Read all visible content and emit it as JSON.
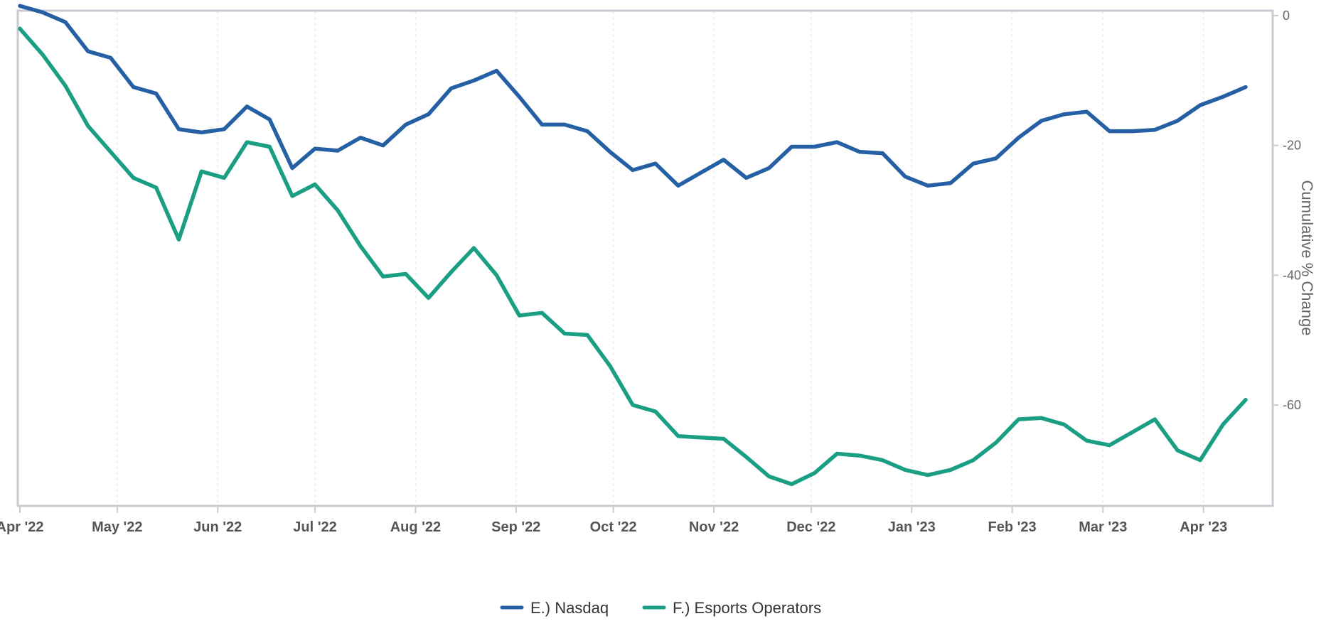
{
  "chart_data": {
    "type": "line",
    "title": "",
    "xlabel": "",
    "ylabel": "Cumulative % Change",
    "y_axis_side": "right",
    "ylim": [
      -75,
      0
    ],
    "yticks": [
      0,
      -20,
      -40,
      -60
    ],
    "grid": {
      "x": "dotted",
      "y": false
    },
    "legend_position": "bottom-center",
    "x_tick_labels": [
      "Apr '22",
      "May '22",
      "Jun '22",
      "Jul '22",
      "Aug '22",
      "Sep '22",
      "Oct '22",
      "Nov '22",
      "Dec '22",
      "Jan '23",
      "Feb '23",
      "Mar '23",
      "Apr '23"
    ],
    "x": [
      "2022-04-01",
      "2022-04-08",
      "2022-04-15",
      "2022-04-22",
      "2022-04-29",
      "2022-05-06",
      "2022-05-13",
      "2022-05-20",
      "2022-05-27",
      "2022-06-03",
      "2022-06-10",
      "2022-06-17",
      "2022-06-24",
      "2022-07-01",
      "2022-07-08",
      "2022-07-15",
      "2022-07-22",
      "2022-07-29",
      "2022-08-05",
      "2022-08-12",
      "2022-08-19",
      "2022-08-26",
      "2022-09-02",
      "2022-09-09",
      "2022-09-16",
      "2022-09-23",
      "2022-09-30",
      "2022-10-07",
      "2022-10-14",
      "2022-10-21",
      "2022-10-28",
      "2022-11-04",
      "2022-11-11",
      "2022-11-18",
      "2022-11-25",
      "2022-12-02",
      "2022-12-09",
      "2022-12-16",
      "2022-12-23",
      "2022-12-30",
      "2023-01-06",
      "2023-01-13",
      "2023-01-20",
      "2023-01-27",
      "2023-02-03",
      "2023-02-10",
      "2023-02-17",
      "2023-02-24",
      "2023-03-03",
      "2023-03-10",
      "2023-03-17",
      "2023-03-24",
      "2023-03-31",
      "2023-04-07",
      "2023-04-14"
    ],
    "series": [
      {
        "name": "E.) Nasdaq",
        "color": "#2660A4",
        "values": [
          1.5,
          0.5,
          -1,
          -5.5,
          -6.5,
          -11,
          -12,
          -17.5,
          -18,
          -17.5,
          -14,
          -16,
          -23.5,
          -20.5,
          -20.8,
          -18.8,
          -20,
          -16.8,
          -15.2,
          -11.2,
          -10,
          -8.5,
          -12.5,
          -16.8,
          -16.8,
          -17.8,
          -21,
          -23.8,
          -22.8,
          -26.2,
          -24.2,
          -22.2,
          -25,
          -23.5,
          -20.2,
          -20.2,
          -19.5,
          -21,
          -21.2,
          -24.8,
          -26.2,
          -25.8,
          -22.8,
          -22,
          -18.8,
          -16.2,
          -15.2,
          -14.8,
          -17.8,
          -17.8,
          -17.6,
          -16.2,
          -13.8,
          -12.5,
          -11
        ]
      },
      {
        "name": "F.) Esports Operators",
        "color": "#1A9E84",
        "values": [
          -2,
          -6,
          -10.8,
          -17,
          -21,
          -25,
          -26.5,
          -34.5,
          -24,
          -25,
          -19.5,
          -20.2,
          -27.8,
          -26,
          -30,
          -35.5,
          -40.2,
          -39.8,
          -43.5,
          -39.5,
          -35.8,
          -40,
          -46.2,
          -45.8,
          -49,
          -49.2,
          -54,
          -60,
          -61,
          -64.8,
          -65,
          -65.2,
          -68,
          -71,
          -72.2,
          -70.5,
          -67.5,
          -67.8,
          -68.5,
          -70,
          -70.8,
          -70,
          -68.5,
          -65.8,
          -62.2,
          -62,
          -63,
          -65.5,
          -66.2,
          -64.2,
          -62.2,
          -67,
          -68.5,
          -63,
          -59.2
        ]
      }
    ]
  }
}
